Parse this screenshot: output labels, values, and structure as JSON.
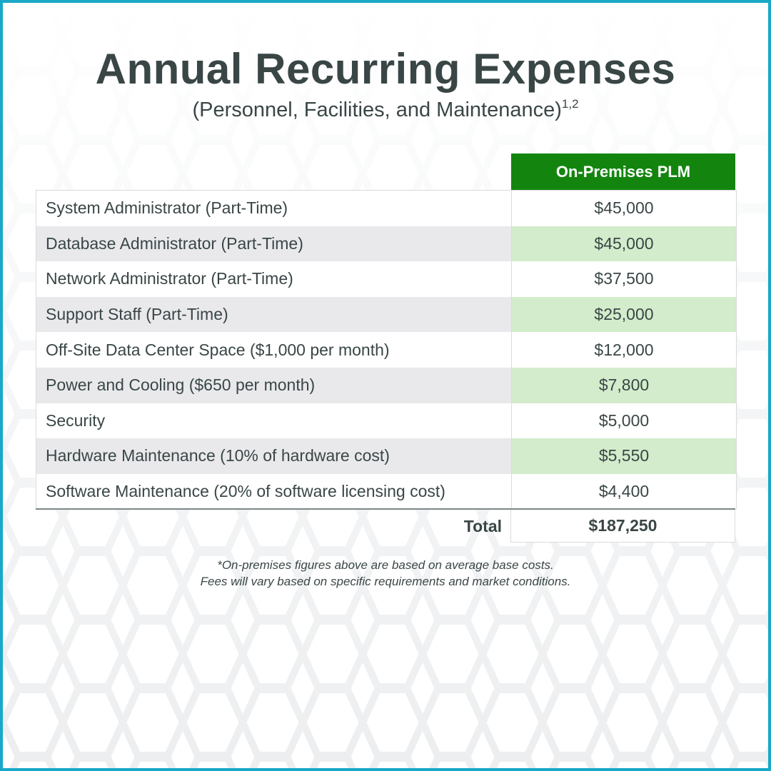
{
  "title": "Annual Recurring Expenses",
  "subtitle": "(Personnel, Facilities, and Maintenance)",
  "subtitle_superscript": "1,2",
  "column_header": "On-Premises PLM",
  "rows": [
    {
      "label": "System Administrator (Part-Time)",
      "value": "$45,000"
    },
    {
      "label": "Database Administrator (Part-Time)",
      "value": "$45,000"
    },
    {
      "label": "Network Administrator (Part-Time)",
      "value": "$37,500"
    },
    {
      "label": "Support Staff (Part-Time)",
      "value": "$25,000"
    },
    {
      "label": "Off-Site Data Center Space ($1,000 per month)",
      "value": "$12,000"
    },
    {
      "label": "Power and Cooling ($650 per month)",
      "value": "$7,800"
    },
    {
      "label": "Security",
      "value": "$5,000"
    },
    {
      "label": "Hardware Maintenance (10% of hardware cost)",
      "value": "$5,550"
    },
    {
      "label": "Software Maintenance (20% of software licensing cost)",
      "value": "$4,400"
    }
  ],
  "total": {
    "label": "Total",
    "value": "$187,250"
  },
  "footnote": {
    "line1": "*On-premises figures above are based on average base costs.",
    "line2": "Fees will vary based on specific requirements and market conditions."
  },
  "colors": {
    "border_accent": "#1aa8c8",
    "header_green": "#13850f",
    "row_alt_label": "#e9e9ec",
    "row_alt_value": "#d3eccb",
    "text": "#3a4646"
  }
}
